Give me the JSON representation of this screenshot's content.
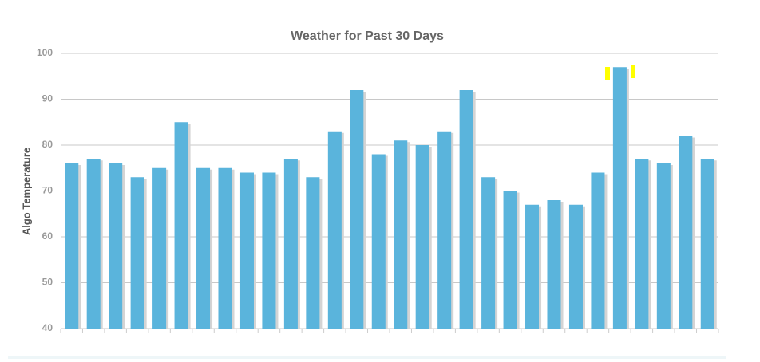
{
  "chart_data": {
    "type": "bar",
    "title": "Weather for Past 30 Days",
    "y_label": "Algo Temperature",
    "categories": [
      null,
      null,
      null,
      null,
      null,
      null,
      null,
      null,
      null,
      null,
      null,
      null,
      null,
      null,
      null,
      null,
      null,
      null,
      null,
      null,
      null,
      null,
      null,
      null,
      null,
      null,
      null,
      null,
      null,
      null
    ],
    "values": [
      76,
      77,
      76,
      73,
      75,
      85,
      75,
      75,
      74,
      74,
      77,
      73,
      83,
      92,
      78,
      81,
      80,
      83,
      92,
      73,
      70,
      67,
      68,
      67,
      74,
      97,
      77,
      76,
      82,
      77
    ],
    "color": "#5ab4dc",
    "ylim": [
      40,
      100
    ],
    "yticks": [
      40,
      50,
      60,
      70,
      80,
      90,
      100
    ],
    "grid": true
  }
}
